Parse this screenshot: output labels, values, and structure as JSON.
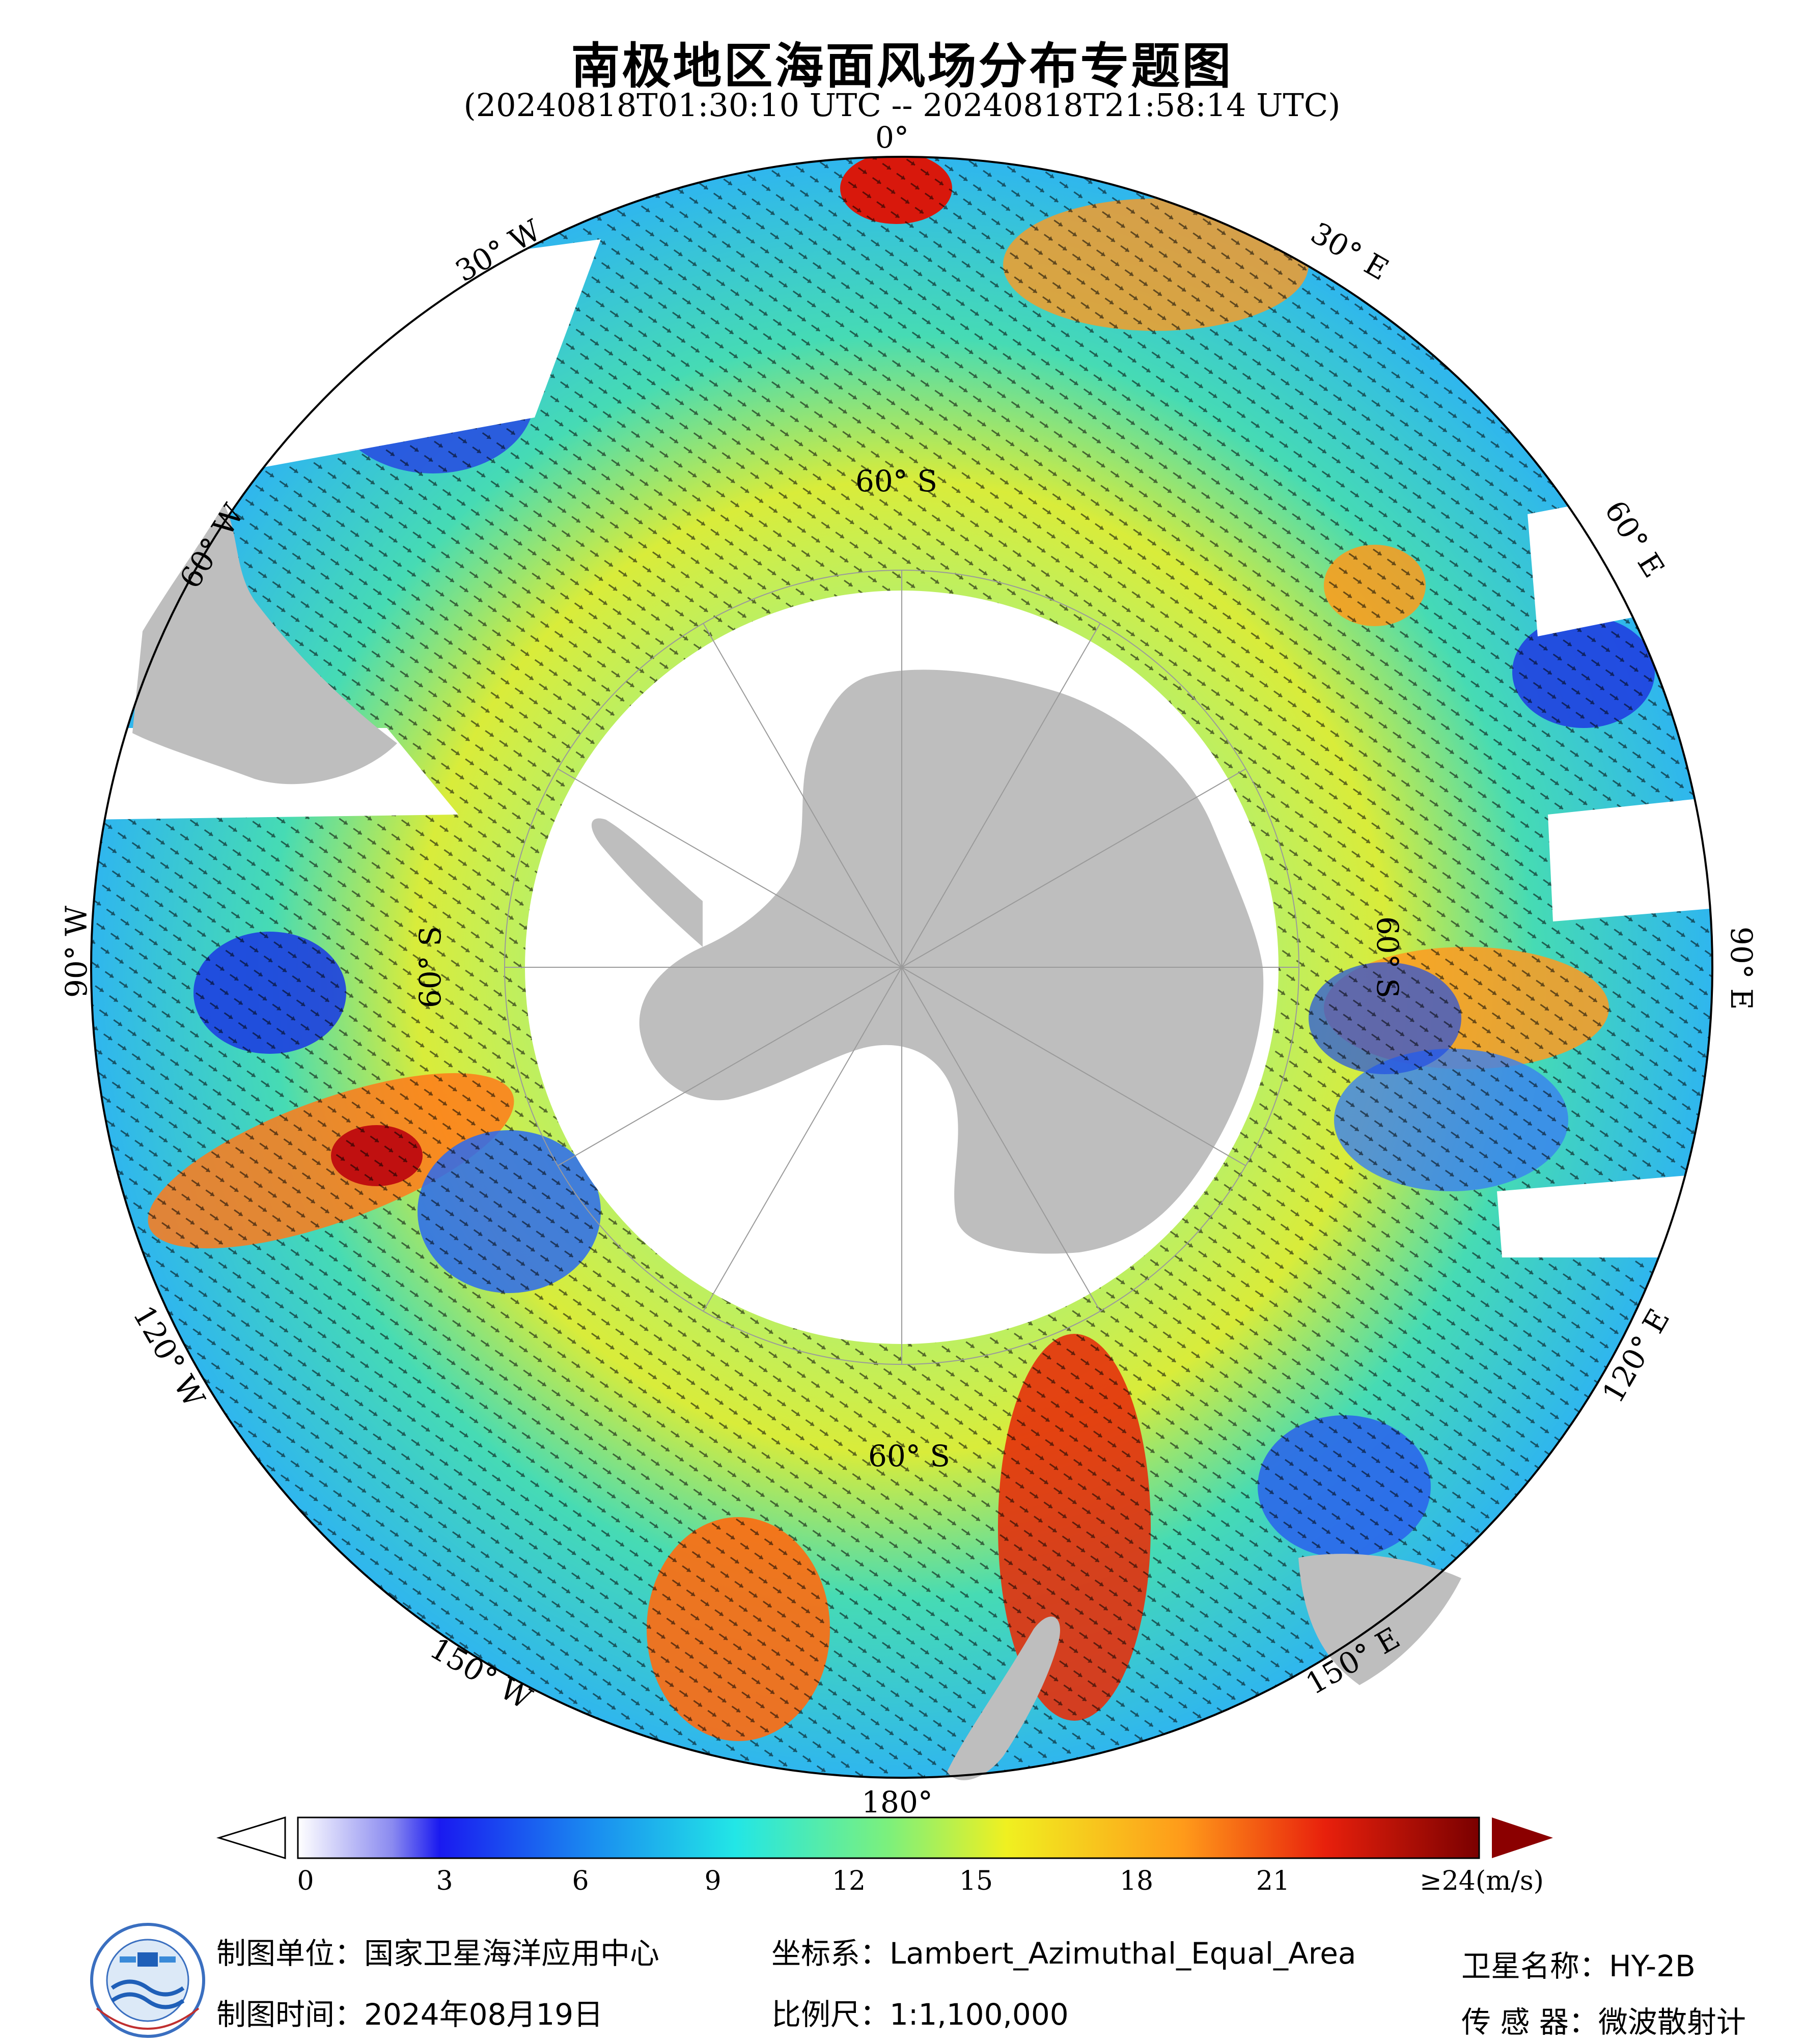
{
  "title": "南极地区海面风场分布专题图",
  "subtitle": "(20240818T01:30:10 UTC -- 20240818T21:58:14 UTC)",
  "map": {
    "longitude_labels": {
      "lon_0": "0°",
      "lon_30e": "30° E",
      "lon_60e": "60° E",
      "lon_90e": "90° E",
      "lon_120e": "120° E",
      "lon_150e": "150° E",
      "lon_180": "180°",
      "lon_150w": "150° W",
      "lon_120w": "120° W",
      "lon_90w": "90° W",
      "lon_60w": "60° W",
      "lon_30w": "30° W"
    },
    "latitude_labels": {
      "lat_top": "60° S",
      "lat_right": "60° S",
      "lat_bottom": "60° S",
      "lat_left": "60° S"
    }
  },
  "colorbar": {
    "ticks": [
      "0",
      "3",
      "6",
      "9",
      "12",
      "15",
      "18",
      "21",
      "≥24(m/s)"
    ],
    "colors": [
      "#ffffff",
      "#1020e0",
      "#1a8cf0",
      "#22e6e6",
      "#7cf07c",
      "#f0f020",
      "#ff9a1a",
      "#e8200c",
      "#7a0000"
    ]
  },
  "footer": {
    "unit": "制图单位：国家卫星海洋应用中心",
    "time": "制图时间：2024年08月19日",
    "coord": "坐标系：Lambert_Azimuthal_Equal_Area",
    "scale": "比例尺：1:1,100,000",
    "satellite": "卫星名称：HY-2B",
    "sensor": "传 感 器：微波散射计"
  }
}
